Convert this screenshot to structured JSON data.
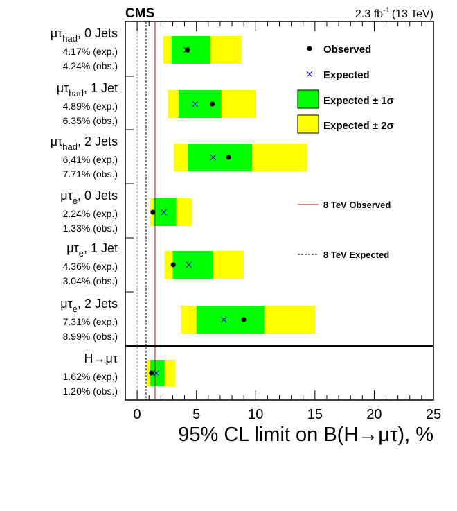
{
  "chart_data": {
    "type": "interval",
    "experiment": "CMS",
    "luminosity": "2.3 fb",
    "luminosity_exp": "-1",
    "energy": "(13 TeV)",
    "xlabel": "95% CL limit on B(H→μτ), %",
    "xlim": [
      -1,
      25
    ],
    "xticks": [
      0,
      5,
      10,
      15,
      20,
      25
    ],
    "legend": {
      "observed": "Observed",
      "expected": "Expected",
      "band1": "Expected ± 1σ",
      "band2": "Expected ± 2σ",
      "obs8": "8 TeV Observed",
      "exp8": "8 TeV Expected"
    },
    "colors": {
      "band1": "#00ff00",
      "band2": "#ffff00",
      "line8_obs": "#cc0000",
      "expected_marker": "#0000cc"
    },
    "ref_8tev_observed": 1.51,
    "ref_8tev_expected": 0.75,
    "categories": [
      {
        "ch": "μτ",
        "sub": "had",
        "rest": ", 0 Jets",
        "exp_text": "4.17% (exp.)",
        "obs_text": "4.24% (obs.)",
        "expected": 4.17,
        "observed": 4.24,
        "band1": [
          2.9,
          6.2
        ],
        "band2": [
          2.2,
          8.8
        ]
      },
      {
        "ch": "μτ",
        "sub": "had",
        "rest": ", 1 Jet",
        "exp_text": "4.89% (exp.)",
        "obs_text": "6.35% (obs.)",
        "expected": 4.89,
        "observed": 6.35,
        "band1": [
          3.5,
          7.1
        ],
        "band2": [
          2.6,
          10.0
        ]
      },
      {
        "ch": "μτ",
        "sub": "had",
        "rest": ", 2 Jets",
        "exp_text": "6.41% (exp.)",
        "obs_text": "7.71% (obs.)",
        "expected": 6.41,
        "observed": 7.71,
        "band1": [
          4.3,
          9.7
        ],
        "band2": [
          3.1,
          14.3
        ]
      },
      {
        "ch": "μτ",
        "sub": "e",
        "rest": ", 0 Jets",
        "exp_text": "2.24% (exp.)",
        "obs_text": "1.33% (obs.)",
        "expected": 2.24,
        "observed": 1.33,
        "band1": [
          1.4,
          3.3
        ],
        "band2": [
          1.1,
          4.6
        ]
      },
      {
        "ch": "μτ",
        "sub": "e",
        "rest": ", 1 Jet",
        "exp_text": "4.36% (exp.)",
        "obs_text": "3.04% (obs.)",
        "expected": 4.36,
        "observed": 3.04,
        "band1": [
          3.0,
          6.4
        ],
        "band2": [
          2.3,
          9.0
        ]
      },
      {
        "ch": "μτ",
        "sub": "e",
        "rest": ", 2 Jets",
        "exp_text": "7.31% (exp.)",
        "obs_text": "8.99% (obs.)",
        "expected": 7.31,
        "observed": 8.99,
        "band1": [
          5.0,
          10.7
        ],
        "band2": [
          3.7,
          15.0
        ]
      },
      {
        "ch": "H→μτ",
        "sub": "",
        "rest": "",
        "exp_text": "1.62% (exp.)",
        "obs_text": "1.20% (obs.)",
        "expected": 1.62,
        "observed": 1.2,
        "band1": [
          1.1,
          2.3
        ],
        "band2": [
          0.8,
          3.2
        ]
      }
    ]
  }
}
